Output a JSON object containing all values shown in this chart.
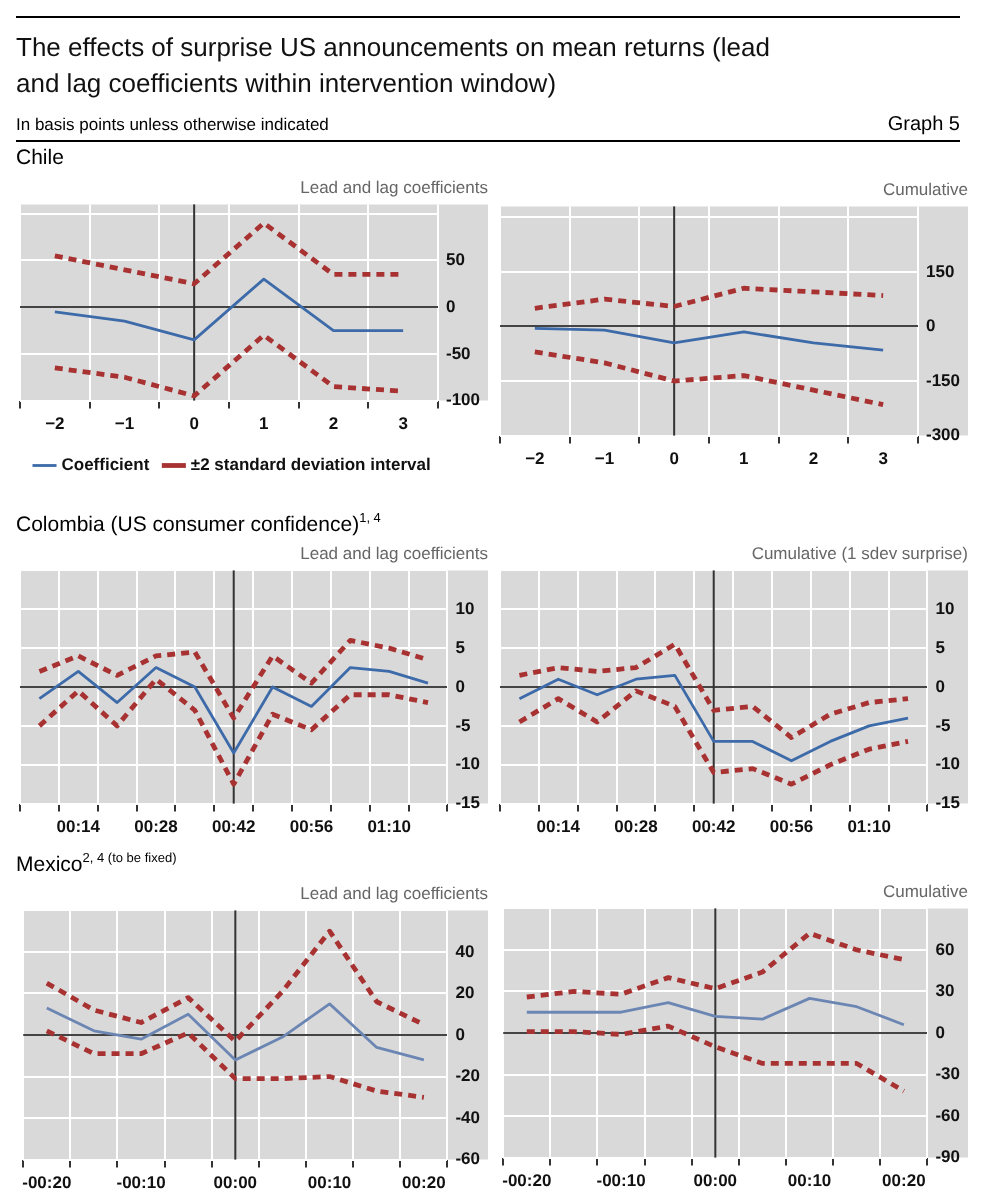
{
  "chart_data": [
    {
      "type": "line",
      "title": "Lead and lag coefficients",
      "subtitle": "Chile",
      "annotations": [
        "The effects of surprise US announcements on mean returns (lead and lag coefficients within intervention window)",
        "In basis points unless otherwise indicated",
        "Graph 5"
      ],
      "categories": [
        "−2",
        "−1",
        "0",
        "1",
        "2",
        "3"
      ],
      "series": [
        {
          "name": "Coefficient",
          "color": "#3d6aa8",
          "values": [
            -5,
            -15,
            -35,
            30,
            -25,
            -25
          ]
        },
        {
          "name": "±2 standard deviation interval",
          "color": "#a83232",
          "line_style": "dashed",
          "values": [
            55,
            40,
            25,
            90,
            35,
            35
          ]
        },
        {
          "color": "#a83232",
          "line_style": "dashed",
          "values": [
            -65,
            -75,
            -95,
            -30,
            -85,
            -90
          ]
        }
      ],
      "ylim": [
        -100,
        110
      ],
      "yticks": [
        {
          "value": 100,
          "label": null
        },
        50,
        0,
        -50,
        -100
      ],
      "grid": true,
      "legend": "bottom",
      "marker": "none",
      "ref_lines": [
        {
          "axis": "x",
          "value": "0"
        }
      ]
    },
    {
      "type": "line",
      "title": "Cumulative",
      "categories": [
        "−2",
        "−1",
        "0",
        "1",
        "2",
        "3"
      ],
      "series": [
        {
          "color": "#3d6aa8",
          "values": [
            -5,
            -10,
            -45,
            -15,
            -45,
            -65
          ]
        },
        {
          "color": "#a83232",
          "line_style": "dashed",
          "values": [
            50,
            75,
            55,
            105,
            95,
            85
          ]
        },
        {
          "color": "#a83232",
          "line_style": "dashed",
          "values": [
            -70,
            -100,
            -150,
            -135,
            -175,
            -215
          ]
        }
      ],
      "ylim": [
        -300,
        330
      ],
      "yticks": [
        {
          "value": 300,
          "label": null
        },
        150,
        0,
        -150,
        -300
      ],
      "grid": true,
      "marker": "none",
      "ref_lines": [
        {
          "axis": "x",
          "value": "0"
        }
      ]
    },
    {
      "type": "line",
      "title": "Lead and lag coefficients",
      "subtitle": "Colombia (US consumer confidence)$^{1, 4}$",
      "categories": [
        null,
        "00:14",
        null,
        "00:28",
        null,
        "00:42",
        null,
        "00:56",
        null,
        "01:10",
        null
      ],
      "series": [
        {
          "color": "#3d6aa8",
          "values": [
            -1.5,
            2,
            -2,
            2.5,
            0,
            -8.5,
            0,
            -2.5,
            2.5,
            2,
            0.5
          ]
        },
        {
          "color": "#a83232",
          "line_style": "dashed",
          "values": [
            2,
            4,
            1.5,
            4,
            4.5,
            -4,
            4,
            0.5,
            6,
            5,
            3.5
          ]
        },
        {
          "color": "#a83232",
          "line_style": "dashed",
          "values": [
            -5,
            -0.5,
            -5,
            1,
            -3,
            -12.5,
            -3.5,
            -5.5,
            -1,
            -1,
            -2
          ]
        }
      ],
      "ylim": [
        -15,
        15
      ],
      "yticks": [
        {
          "value": 15,
          "label": null
        },
        10,
        5,
        0,
        -5,
        -10,
        -15
      ],
      "grid": true,
      "marker": "none",
      "ref_lines": [
        {
          "axis": "x",
          "value": "00:42"
        }
      ]
    },
    {
      "type": "line",
      "title": "Cumulative (1 sdev surprise)",
      "categories": [
        null,
        "00:14",
        null,
        "00:28",
        null,
        "00:42",
        null,
        "00:56",
        null,
        "01:10",
        null
      ],
      "series": [
        {
          "color": "#3d6aa8",
          "values": [
            -1.5,
            1,
            -1,
            1,
            1.5,
            -7,
            -7,
            -9.5,
            -7,
            -5,
            -4
          ]
        },
        {
          "color": "#a83232",
          "line_style": "dashed",
          "values": [
            1.5,
            2.5,
            2,
            2.5,
            5.5,
            -3,
            -2.5,
            -6.5,
            -3.5,
            -2,
            -1.5
          ]
        },
        {
          "color": "#a83232",
          "line_style": "dashed",
          "values": [
            -4.5,
            -1.5,
            -4.5,
            -0.5,
            -2.5,
            -11,
            -10.5,
            -12.5,
            -10,
            -8,
            -7
          ]
        }
      ],
      "ylim": [
        -15,
        15
      ],
      "yticks": [
        {
          "value": 15,
          "label": null
        },
        10,
        5,
        0,
        -5,
        -10,
        -15
      ],
      "grid": true,
      "marker": "none",
      "ref_lines": [
        {
          "axis": "x",
          "value": "00:42"
        }
      ]
    },
    {
      "type": "line",
      "title": "Lead and lag coefficients",
      "subtitle": "Mexico$^{2, 4 (to be fixed)}$",
      "categories": [
        "-00:20",
        null,
        "-00:10",
        null,
        "00:00",
        null,
        "00:10",
        null,
        "00:20"
      ],
      "series": [
        {
          "color": "#6c86b4",
          "values": [
            13,
            2,
            -2,
            10,
            -12,
            -1,
            15,
            -6,
            -12
          ]
        },
        {
          "color": "#a83232",
          "line_style": "dashed",
          "values": [
            25,
            12,
            6,
            18,
            -3,
            21,
            50,
            16,
            5
          ]
        },
        {
          "color": "#a83232",
          "line_style": "dashed",
          "values": [
            2,
            -9,
            -9,
            1,
            -21,
            -21,
            -20,
            -27,
            -30
          ]
        }
      ],
      "ylim": [
        -60,
        60
      ],
      "yticks": [
        {
          "value": 60,
          "label": null
        },
        40,
        20,
        0,
        -20,
        -40,
        -60
      ],
      "grid": true,
      "marker": "none",
      "ref_lines": [
        {
          "axis": "x",
          "value": "00:00"
        }
      ]
    },
    {
      "type": "line",
      "title": "Cumulative",
      "categories": [
        "-00:20",
        null,
        "-00:10",
        null,
        "00:00",
        null,
        "00:10",
        null,
        "00:20"
      ],
      "series": [
        {
          "color": "#6c86b4",
          "values": [
            15,
            15,
            15,
            22,
            12,
            10,
            25,
            19,
            6
          ]
        },
        {
          "color": "#a83232",
          "line_style": "dashed",
          "values": [
            26,
            30,
            28,
            40,
            32,
            44,
            72,
            60,
            53
          ]
        },
        {
          "color": "#a83232",
          "line_style": "dashed",
          "values": [
            1,
            1,
            -1,
            5,
            -10,
            -22,
            -22,
            -22,
            -42
          ]
        }
      ],
      "ylim": [
        -90,
        90
      ],
      "yticks": [
        {
          "value": 90,
          "label": null
        },
        60,
        30,
        0,
        -30,
        -60,
        -90
      ],
      "grid": true,
      "marker": "none",
      "ref_lines": [
        {
          "axis": "x",
          "value": "00:00"
        }
      ]
    }
  ]
}
